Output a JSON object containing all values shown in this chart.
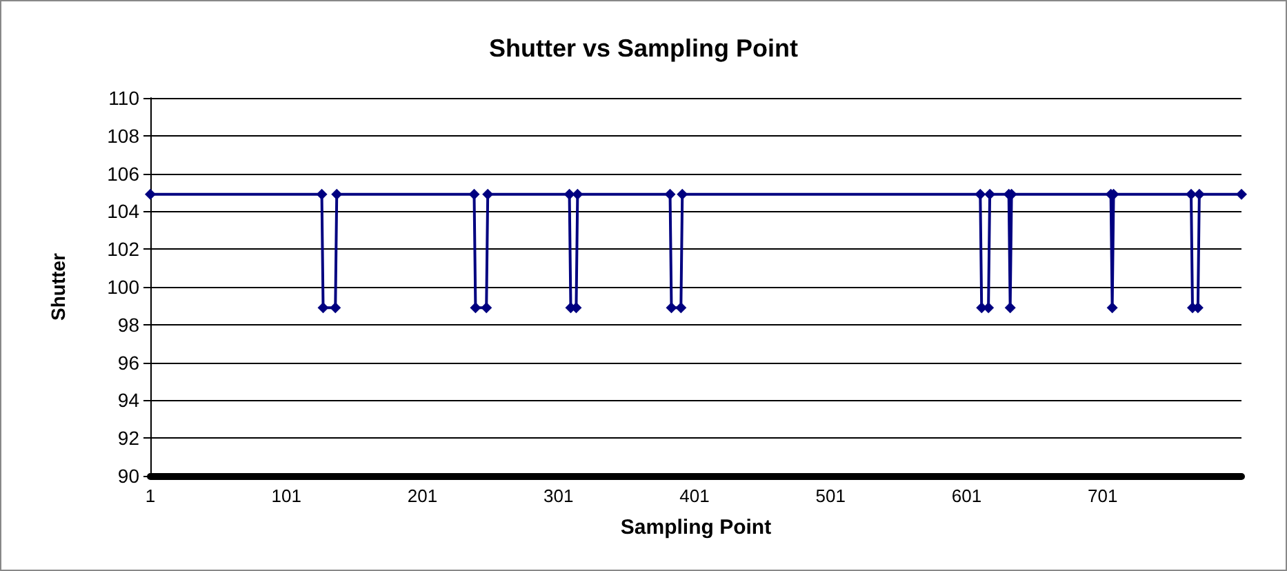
{
  "chart_data": {
    "type": "line",
    "title": "Shutter vs Sampling Point",
    "xlabel": "Sampling Point",
    "ylabel": "Shutter",
    "series": [
      {
        "color": "#000080",
        "x": [
          1,
          127,
          128,
          137,
          138,
          239,
          240,
          248,
          249,
          309,
          310,
          314,
          315,
          383,
          384,
          391,
          392,
          611,
          612,
          617,
          618,
          632,
          633,
          634,
          707,
          708,
          709,
          766,
          767,
          771,
          772,
          803
        ],
        "values": [
          104.9,
          104.9,
          98.9,
          98.9,
          104.9,
          104.9,
          98.9,
          98.9,
          104.9,
          104.9,
          98.9,
          98.9,
          104.9,
          104.9,
          98.9,
          98.9,
          104.9,
          104.9,
          98.9,
          98.9,
          104.9,
          104.9,
          98.9,
          104.9,
          104.9,
          98.9,
          104.9,
          104.9,
          98.9,
          98.9,
          104.9,
          104.9
        ]
      }
    ],
    "xlim": [
      1,
      803
    ],
    "xticks": [
      1,
      101,
      201,
      301,
      401,
      501,
      601,
      701
    ],
    "ylim": [
      90,
      110
    ],
    "yticks": [
      90,
      92,
      94,
      96,
      98,
      100,
      102,
      104,
      106,
      108,
      110
    ],
    "grid": "y",
    "marker": "diamond",
    "line_style": "solid"
  }
}
